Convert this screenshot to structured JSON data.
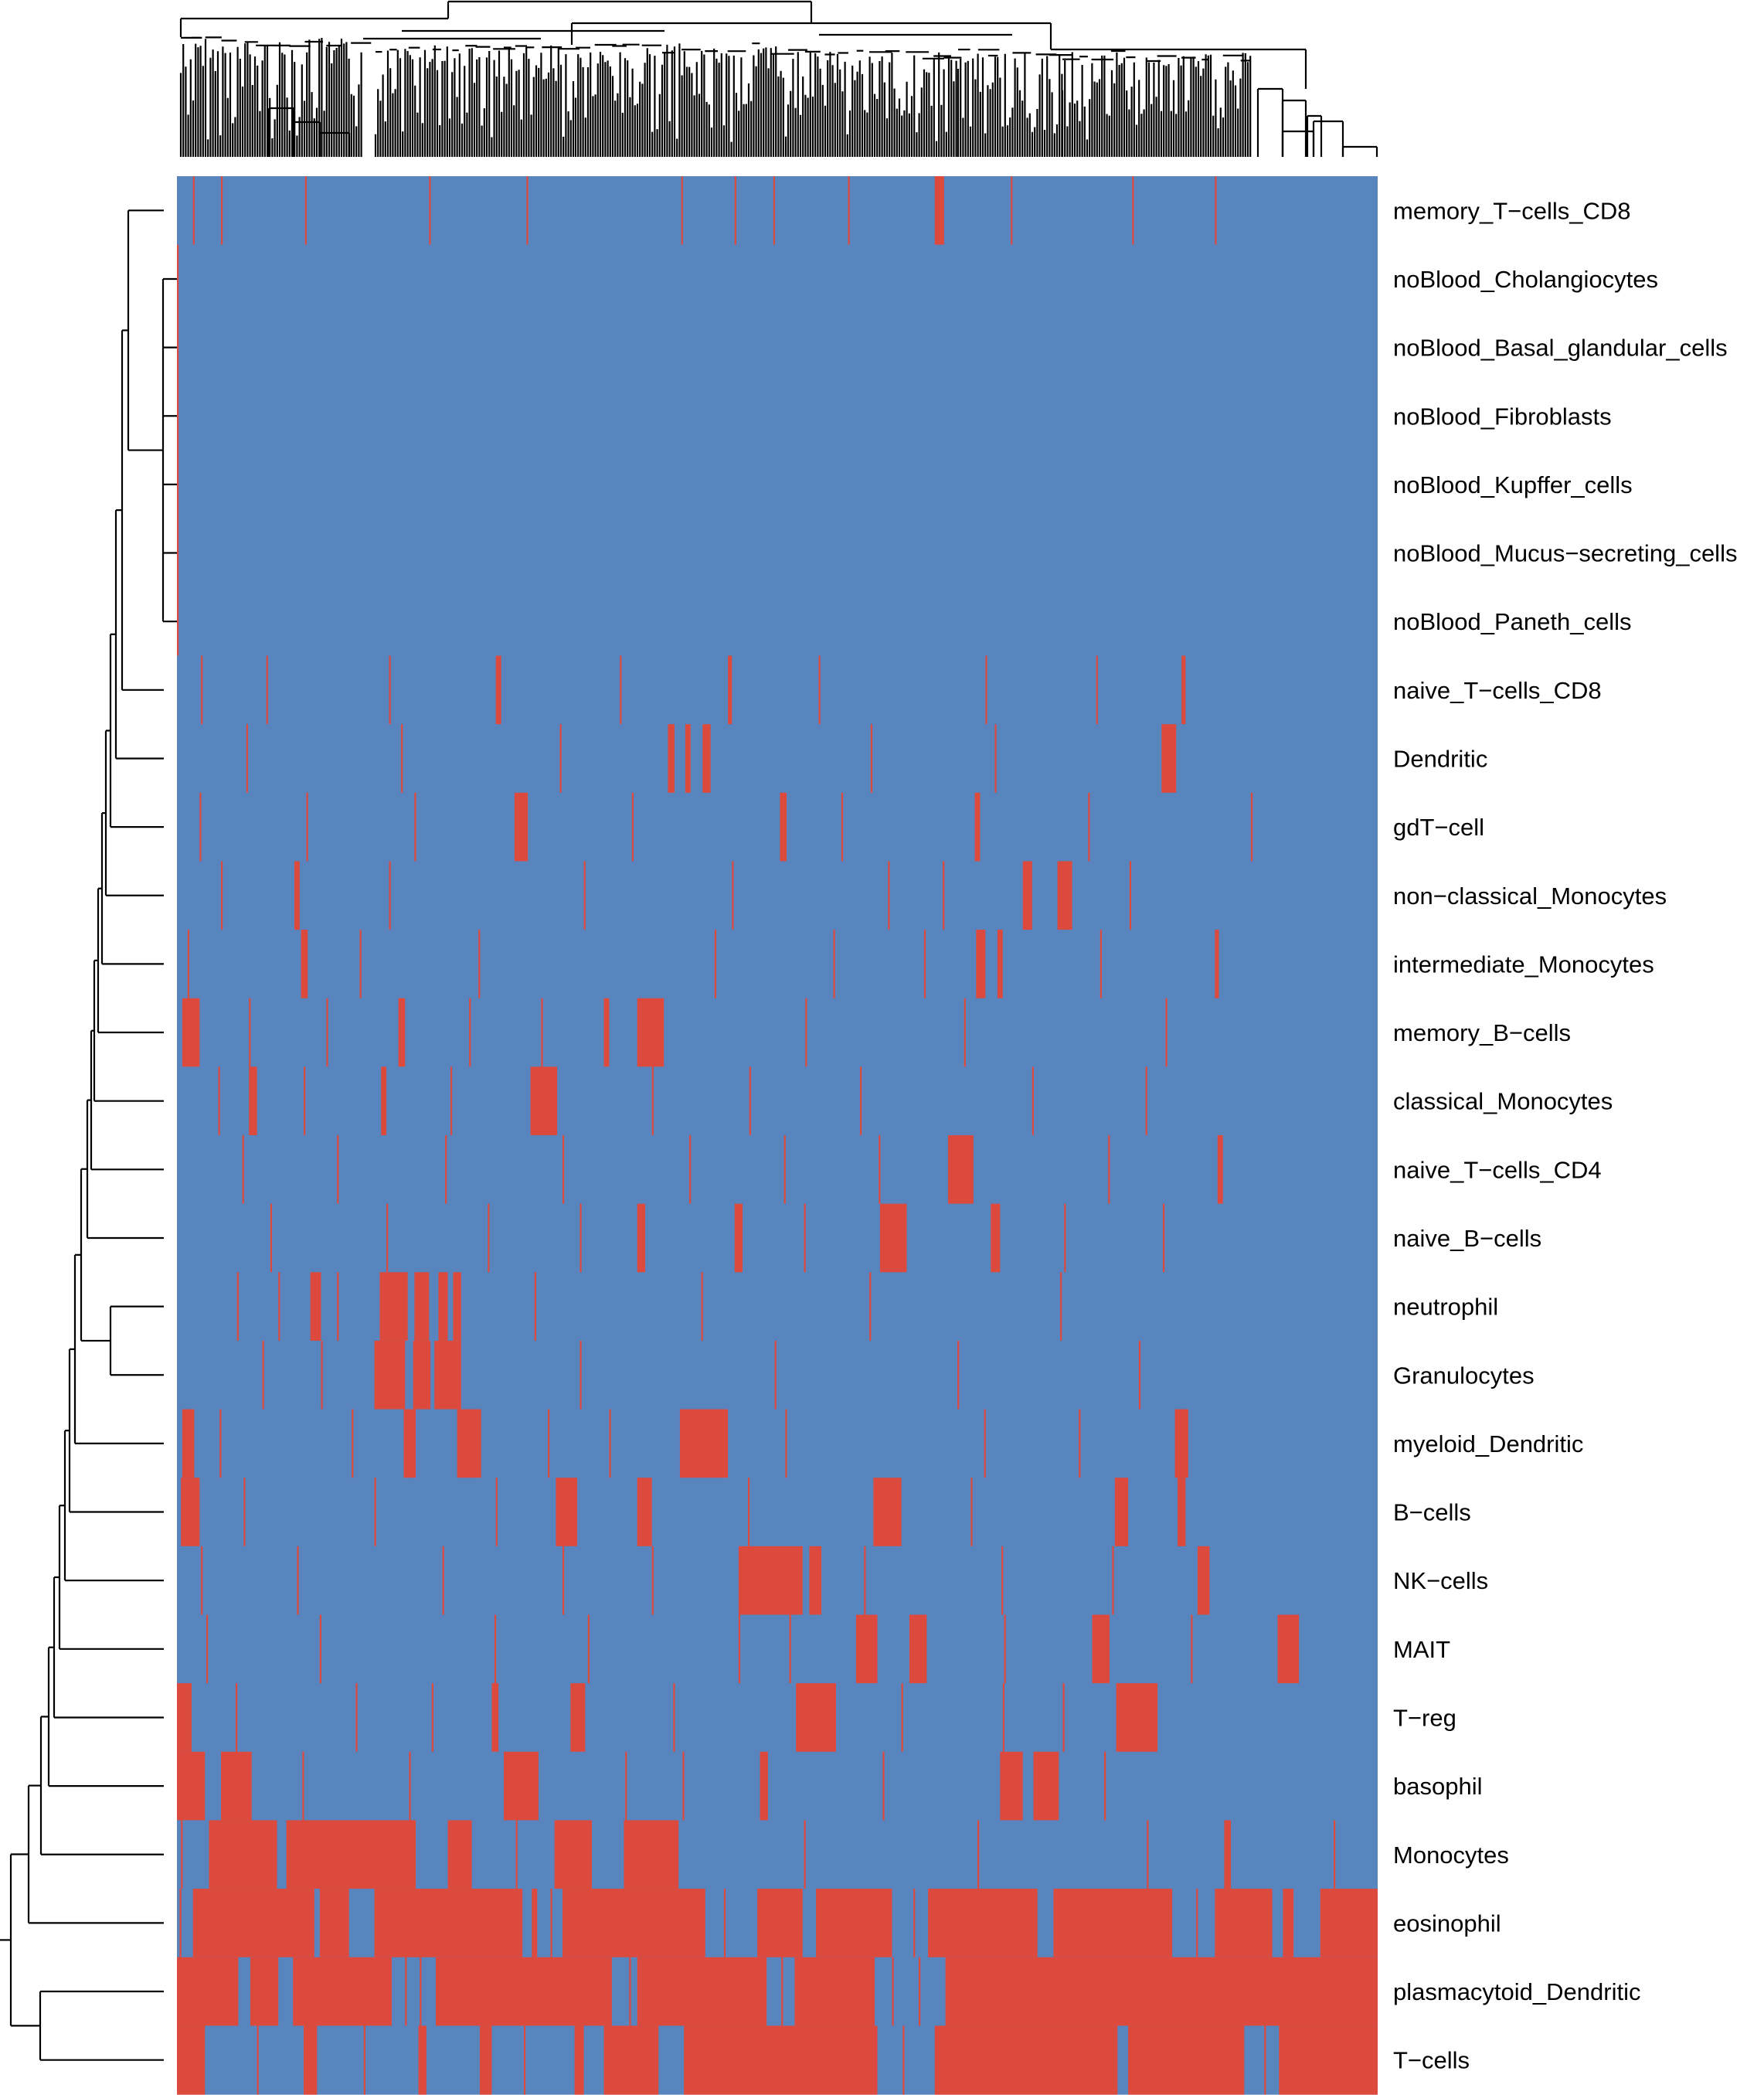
{
  "chart_data": {
    "type": "heatmap",
    "title": "",
    "xlabel": "",
    "ylabel": "",
    "grid": false,
    "legend": "none",
    "value_scale": "binary",
    "colors": {
      "high": "#dc4a3e",
      "low": "#5985bf",
      "background": "#ffffff",
      "dendrogram": "#000000"
    },
    "column_count": 900,
    "column_dendrogram": true,
    "row_dendrogram": true,
    "rows": [
      {
        "label": "memory_T−cells_CD8",
        "high_ranges": [
          [
            568,
            574
          ],
          [
            12,
            12
          ],
          [
            33,
            33
          ],
          [
            96,
            96
          ],
          [
            189,
            189
          ],
          [
            262,
            262
          ],
          [
            378,
            378
          ],
          [
            418,
            418
          ],
          [
            447,
            447
          ],
          [
            503,
            503
          ],
          [
            625,
            625
          ],
          [
            716,
            716
          ],
          [
            778,
            778
          ]
        ]
      },
      {
        "label": "noBlood_Cholangiocytes",
        "high_ranges": [
          [
            0,
            0
          ]
        ]
      },
      {
        "label": "noBlood_Basal_glandular_cells",
        "high_ranges": [
          [
            0,
            0
          ]
        ]
      },
      {
        "label": "noBlood_Fibroblasts",
        "high_ranges": [
          [
            0,
            0
          ]
        ]
      },
      {
        "label": "noBlood_Kupffer_cells",
        "high_ranges": [
          [
            0,
            0
          ]
        ]
      },
      {
        "label": "noBlood_Mucus−secreting_cells",
        "high_ranges": [
          [
            0,
            0
          ]
        ]
      },
      {
        "label": "noBlood_Paneth_cells",
        "high_ranges": [
          [
            0,
            0
          ]
        ]
      },
      {
        "label": "naive_T−cells_CD8",
        "high_ranges": [
          [
            239,
            242
          ],
          [
            413,
            415
          ],
          [
            753,
            755
          ],
          [
            18,
            18
          ],
          [
            67,
            67
          ],
          [
            159,
            159
          ],
          [
            332,
            332
          ],
          [
            481,
            481
          ],
          [
            606,
            606
          ],
          [
            689,
            689
          ]
        ]
      },
      {
        "label": "Dendritic",
        "high_ranges": [
          [
            368,
            372
          ],
          [
            381,
            384
          ],
          [
            394,
            399
          ],
          [
            738,
            748
          ],
          [
            52,
            52
          ],
          [
            168,
            168
          ],
          [
            287,
            287
          ],
          [
            520,
            520
          ],
          [
            613,
            613
          ]
        ]
      },
      {
        "label": "gdT−cell",
        "high_ranges": [
          [
            253,
            262
          ],
          [
            452,
            456
          ],
          [
            598,
            601
          ],
          [
            17,
            17
          ],
          [
            97,
            97
          ],
          [
            178,
            178
          ],
          [
            341,
            341
          ],
          [
            498,
            498
          ],
          [
            683,
            683
          ],
          [
            805,
            805
          ]
        ]
      },
      {
        "label": "non−classical_Monocytes",
        "high_ranges": [
          [
            88,
            91
          ],
          [
            634,
            640
          ],
          [
            660,
            670
          ],
          [
            33,
            33
          ],
          [
            159,
            159
          ],
          [
            305,
            305
          ],
          [
            416,
            416
          ],
          [
            533,
            533
          ],
          [
            574,
            574
          ],
          [
            714,
            714
          ]
        ]
      },
      {
        "label": "intermediate_Monocytes",
        "high_ranges": [
          [
            93,
            97
          ],
          [
            599,
            605
          ],
          [
            615,
            618
          ],
          [
            778,
            780
          ],
          [
            8,
            8
          ],
          [
            137,
            137
          ],
          [
            226,
            226
          ],
          [
            403,
            403
          ],
          [
            492,
            492
          ],
          [
            560,
            560
          ],
          [
            692,
            692
          ]
        ]
      },
      {
        "label": "memory_B−cells",
        "high_ranges": [
          [
            4,
            16
          ],
          [
            166,
            170
          ],
          [
            320,
            323
          ],
          [
            345,
            364
          ],
          [
            54,
            54
          ],
          [
            112,
            112
          ],
          [
            219,
            219
          ],
          [
            273,
            273
          ],
          [
            471,
            471
          ],
          [
            590,
            590
          ],
          [
            741,
            741
          ]
        ]
      },
      {
        "label": "classical_Monocytes",
        "high_ranges": [
          [
            54,
            59
          ],
          [
            153,
            156
          ],
          [
            265,
            284
          ],
          [
            31,
            31
          ],
          [
            95,
            95
          ],
          [
            205,
            205
          ],
          [
            356,
            356
          ],
          [
            429,
            429
          ],
          [
            512,
            512
          ],
          [
            641,
            641
          ],
          [
            726,
            726
          ]
        ]
      },
      {
        "label": "naive_T−cells_CD4",
        "high_ranges": [
          [
            578,
            596
          ],
          [
            780,
            783
          ],
          [
            49,
            49
          ],
          [
            120,
            120
          ],
          [
            201,
            201
          ],
          [
            289,
            289
          ],
          [
            384,
            384
          ],
          [
            455,
            455
          ],
          [
            526,
            526
          ],
          [
            698,
            698
          ]
        ]
      },
      {
        "label": "naive_B−cells",
        "high_ranges": [
          [
            345,
            350
          ],
          [
            418,
            423
          ],
          [
            527,
            546
          ],
          [
            610,
            616
          ],
          [
            70,
            70
          ],
          [
            157,
            157
          ],
          [
            233,
            233
          ],
          [
            302,
            302
          ],
          [
            470,
            470
          ],
          [
            665,
            665
          ],
          [
            739,
            739
          ]
        ]
      },
      {
        "label": "neutrophil",
        "high_ranges": [
          [
            100,
            107
          ],
          [
            152,
            172
          ],
          [
            178,
            188
          ],
          [
            196,
            202
          ],
          [
            207,
            212
          ],
          [
            45,
            45
          ],
          [
            76,
            76
          ],
          [
            120,
            120
          ],
          [
            268,
            268
          ],
          [
            393,
            393
          ],
          [
            519,
            519
          ],
          [
            662,
            662
          ]
        ]
      },
      {
        "label": "Granulocytes",
        "high_ranges": [
          [
            148,
            170
          ],
          [
            177,
            189
          ],
          [
            193,
            212
          ],
          [
            64,
            64
          ],
          [
            108,
            108
          ],
          [
            302,
            302
          ],
          [
            448,
            448
          ],
          [
            585,
            585
          ],
          [
            721,
            721
          ]
        ]
      },
      {
        "label": "myeloid_Dendritic",
        "high_ranges": [
          [
            4,
            12
          ],
          [
            170,
            178
          ],
          [
            210,
            227
          ],
          [
            377,
            412
          ],
          [
            748,
            757
          ],
          [
            32,
            32
          ],
          [
            131,
            131
          ],
          [
            278,
            278
          ],
          [
            324,
            324
          ],
          [
            456,
            456
          ],
          [
            605,
            605
          ],
          [
            676,
            676
          ]
        ]
      },
      {
        "label": "B−cells",
        "high_ranges": [
          [
            3,
            16
          ],
          [
            284,
            299
          ],
          [
            345,
            355
          ],
          [
            522,
            542
          ],
          [
            703,
            712
          ],
          [
            750,
            755
          ],
          [
            50,
            50
          ],
          [
            148,
            148
          ],
          [
            239,
            239
          ],
          [
            428,
            428
          ],
          [
            595,
            595
          ]
        ]
      },
      {
        "label": "NK−cells",
        "high_ranges": [
          [
            421,
            468
          ],
          [
            474,
            482
          ],
          [
            765,
            773
          ],
          [
            18,
            18
          ],
          [
            90,
            90
          ],
          [
            199,
            199
          ],
          [
            289,
            289
          ],
          [
            356,
            356
          ],
          [
            515,
            515
          ],
          [
            618,
            618
          ],
          [
            701,
            701
          ]
        ]
      },
      {
        "label": "MAIT",
        "high_ranges": [
          [
            509,
            524
          ],
          [
            549,
            561
          ],
          [
            686,
            698
          ],
          [
            825,
            840
          ],
          [
            22,
            22
          ],
          [
            107,
            107
          ],
          [
            238,
            238
          ],
          [
            308,
            308
          ],
          [
            421,
            421
          ],
          [
            459,
            459
          ],
          [
            620,
            620
          ],
          [
            760,
            760
          ]
        ]
      },
      {
        "label": "T−reg",
        "high_ranges": [
          [
            0,
            10
          ],
          [
            236,
            240
          ],
          [
            295,
            305
          ],
          [
            464,
            493
          ],
          [
            704,
            734
          ],
          [
            44,
            44
          ],
          [
            134,
            134
          ],
          [
            191,
            191
          ],
          [
            372,
            372
          ],
          [
            543,
            543
          ],
          [
            619,
            619
          ],
          [
            664,
            664
          ]
        ]
      },
      {
        "label": "basophil",
        "high_ranges": [
          [
            0,
            20
          ],
          [
            33,
            55
          ],
          [
            245,
            270
          ],
          [
            437,
            442
          ],
          [
            617,
            633
          ],
          [
            642,
            660
          ],
          [
            94,
            94
          ],
          [
            174,
            174
          ],
          [
            336,
            336
          ],
          [
            379,
            379
          ],
          [
            529,
            529
          ],
          [
            695,
            695
          ]
        ]
      },
      {
        "label": "Monocytes",
        "high_ranges": [
          [
            24,
            74
          ],
          [
            82,
            178
          ],
          [
            203,
            220
          ],
          [
            283,
            310
          ],
          [
            335,
            375
          ],
          [
            785,
            789
          ],
          [
            3,
            3
          ],
          [
            254,
            254
          ],
          [
            470,
            470
          ],
          [
            600,
            600
          ],
          [
            727,
            727
          ],
          [
            867,
            867
          ]
        ]
      },
      {
        "label": "eosinophil",
        "high_ranges": [
          [
            12,
            102
          ],
          [
            107,
            128
          ],
          [
            148,
            258
          ],
          [
            266,
            269
          ],
          [
            289,
            395
          ],
          [
            435,
            468
          ],
          [
            479,
            535
          ],
          [
            563,
            644
          ],
          [
            657,
            745
          ],
          [
            778,
            820
          ],
          [
            829,
            836
          ],
          [
            857,
            899
          ],
          [
            2,
            2
          ],
          [
            280,
            280
          ],
          [
            410,
            410
          ],
          [
            552,
            552
          ],
          [
            764,
            764
          ]
        ]
      },
      {
        "label": "plasmacytoid_Dendritic",
        "high_ranges": [
          [
            0,
            45
          ],
          [
            55,
            75
          ],
          [
            87,
            160
          ],
          [
            194,
            325
          ],
          [
            345,
            441
          ],
          [
            463,
            522
          ],
          [
            576,
            899
          ],
          [
            171,
            171
          ],
          [
            182,
            182
          ],
          [
            339,
            339
          ],
          [
            453,
            453
          ],
          [
            536,
            536
          ],
          [
            556,
            556
          ]
        ]
      },
      {
        "label": "T−cells",
        "high_ranges": [
          [
            0,
            20
          ],
          [
            95,
            104
          ],
          [
            181,
            186
          ],
          [
            227,
            235
          ],
          [
            298,
            304
          ],
          [
            320,
            360
          ],
          [
            380,
            524
          ],
          [
            568,
            704
          ],
          [
            713,
            799
          ],
          [
            826,
            899
          ],
          [
            60,
            60
          ],
          [
            140,
            140
          ],
          [
            260,
            260
          ],
          [
            544,
            544
          ],
          [
            815,
            815
          ]
        ]
      }
    ]
  }
}
